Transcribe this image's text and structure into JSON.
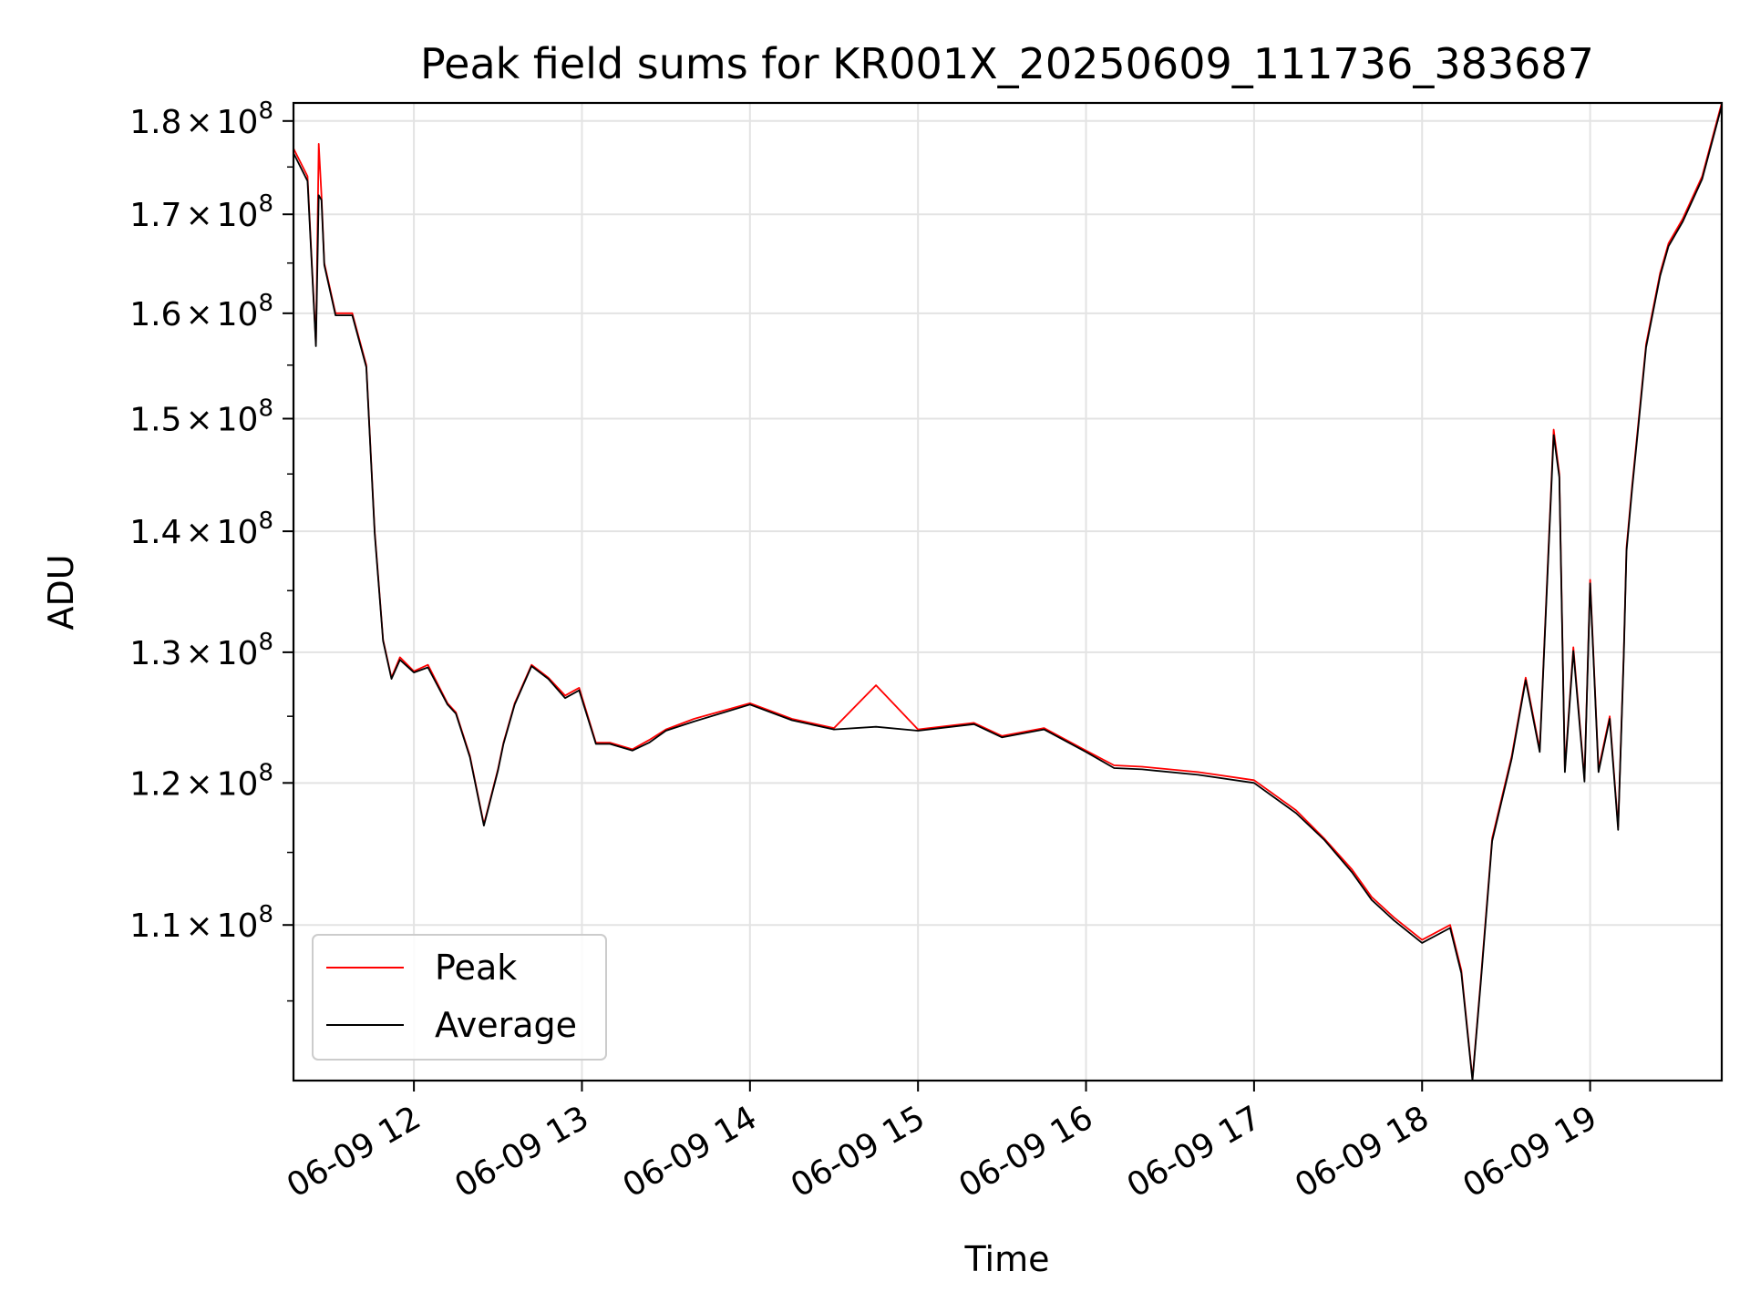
{
  "chart_data": {
    "type": "line",
    "title": "Peak field sums for KR001X_20250609_111736_383687",
    "xlabel": "Time",
    "ylabel": "ADU",
    "yscale": "log",
    "grid": true,
    "legend_position": "lower-left",
    "xlim": [
      "2025-06-09 11:17",
      "2025-06-09 19:47"
    ],
    "ylim": [
      100000000,
      182000000
    ],
    "x_ticks": [
      "06-09 12",
      "06-09 13",
      "06-09 14",
      "06-09 15",
      "06-09 16",
      "06-09 17",
      "06-09 18",
      "06-09 19"
    ],
    "y_ticks": [
      {
        "value": 110000000,
        "mantissa": "1.1",
        "exponent": "8"
      },
      {
        "value": 120000000,
        "mantissa": "1.2",
        "exponent": "8"
      },
      {
        "value": 130000000,
        "mantissa": "1.3",
        "exponent": "8"
      },
      {
        "value": 140000000,
        "mantissa": "1.4",
        "exponent": "8"
      },
      {
        "value": 150000000,
        "mantissa": "1.5",
        "exponent": "8"
      },
      {
        "value": 160000000,
        "mantissa": "1.6",
        "exponent": "8"
      },
      {
        "value": 170000000,
        "mantissa": "1.7",
        "exponent": "8"
      },
      {
        "value": 180000000,
        "mantissa": "1.8",
        "exponent": "8"
      }
    ],
    "tick_times_symbol": "×",
    "x_time": [
      "2025-06-09 11:17",
      "2025-06-09 11:22",
      "2025-06-09 11:25",
      "2025-06-09 11:26",
      "2025-06-09 11:27",
      "2025-06-09 11:28",
      "2025-06-09 11:32",
      "2025-06-09 11:38",
      "2025-06-09 11:43",
      "2025-06-09 11:46",
      "2025-06-09 11:49",
      "2025-06-09 11:52",
      "2025-06-09 11:55",
      "2025-06-09 12:00",
      "2025-06-09 12:05",
      "2025-06-09 12:12",
      "2025-06-09 12:15",
      "2025-06-09 12:20",
      "2025-06-09 12:25",
      "2025-06-09 12:30",
      "2025-06-09 12:32",
      "2025-06-09 12:36",
      "2025-06-09 12:42",
      "2025-06-09 12:48",
      "2025-06-09 12:54",
      "2025-06-09 12:59",
      "2025-06-09 13:05",
      "2025-06-09 13:10",
      "2025-06-09 13:18",
      "2025-06-09 13:24",
      "2025-06-09 13:30",
      "2025-06-09 13:40",
      "2025-06-09 14:00",
      "2025-06-09 14:15",
      "2025-06-09 14:30",
      "2025-06-09 14:45",
      "2025-06-09 15:00",
      "2025-06-09 15:20",
      "2025-06-09 15:30",
      "2025-06-09 15:45",
      "2025-06-09 16:00",
      "2025-06-09 16:10",
      "2025-06-09 16:20",
      "2025-06-09 16:40",
      "2025-06-09 17:00",
      "2025-06-09 17:15",
      "2025-06-09 17:25",
      "2025-06-09 17:35",
      "2025-06-09 17:42",
      "2025-06-09 17:50",
      "2025-06-09 18:00",
      "2025-06-09 18:10",
      "2025-06-09 18:14",
      "2025-06-09 18:18",
      "2025-06-09 18:21",
      "2025-06-09 18:25",
      "2025-06-09 18:32",
      "2025-06-09 18:37",
      "2025-06-09 18:42",
      "2025-06-09 18:47",
      "2025-06-09 18:49",
      "2025-06-09 18:51",
      "2025-06-09 18:54",
      "2025-06-09 18:58",
      "2025-06-09 19:00",
      "2025-06-09 19:03",
      "2025-06-09 19:07",
      "2025-06-09 19:10",
      "2025-06-09 19:12",
      "2025-06-09 19:13",
      "2025-06-09 19:15",
      "2025-06-09 19:17",
      "2025-06-09 19:20",
      "2025-06-09 19:25",
      "2025-06-09 19:28",
      "2025-06-09 19:33",
      "2025-06-09 19:40",
      "2025-06-09 19:47"
    ],
    "series": [
      {
        "name": "Peak",
        "color": "#ff0000",
        "values": [
          177000000,
          174000000,
          157000000,
          177500000,
          172000000,
          165000000,
          160000000,
          160000000,
          155000000,
          140000000,
          131000000,
          128000000,
          129600000,
          128500000,
          129000000,
          126000000,
          125300000,
          122000000,
          117000000,
          121000000,
          123000000,
          126000000,
          129000000,
          128000000,
          126600000,
          127200000,
          123000000,
          123000000,
          122500000,
          123200000,
          124000000,
          124800000,
          126000000,
          124800000,
          124100000,
          127400000,
          124000000,
          124500000,
          123500000,
          124100000,
          122400000,
          121300000,
          121200000,
          120800000,
          120200000,
          118000000,
          116000000,
          113800000,
          111900000,
          110500000,
          109000000,
          110000000,
          107000000,
          100100000,
          106500000,
          116000000,
          122000000,
          128000000,
          122500000,
          149000000,
          145000000,
          121000000,
          130400000,
          120300000,
          135900000,
          121000000,
          125000000,
          116800000,
          130000000,
          138600000,
          144000000,
          149000000,
          157000000,
          164000000,
          167000000,
          169500000,
          174000000,
          182000000
        ]
      },
      {
        "name": "Average",
        "color": "#000000",
        "values": [
          176500000,
          173500000,
          156800000,
          172000000,
          171500000,
          164800000,
          159800000,
          159800000,
          154800000,
          139800000,
          130900000,
          127900000,
          129400000,
          128400000,
          128800000,
          125900000,
          125200000,
          121900000,
          116900000,
          120900000,
          122900000,
          125900000,
          128900000,
          127900000,
          126400000,
          127000000,
          122900000,
          122900000,
          122400000,
          123000000,
          123900000,
          124600000,
          125900000,
          124700000,
          124000000,
          124200000,
          123900000,
          124400000,
          123400000,
          124000000,
          122300000,
          121100000,
          121000000,
          120600000,
          120000000,
          117800000,
          115900000,
          113600000,
          111700000,
          110300000,
          108800000,
          109800000,
          106800000,
          100000000,
          106300000,
          115800000,
          121800000,
          127800000,
          122300000,
          148500000,
          144700000,
          120800000,
          130100000,
          120100000,
          135600000,
          120800000,
          124800000,
          116600000,
          129700000,
          138300000,
          143700000,
          148700000,
          156700000,
          163700000,
          166700000,
          169200000,
          173700000,
          181700000
        ]
      }
    ]
  }
}
